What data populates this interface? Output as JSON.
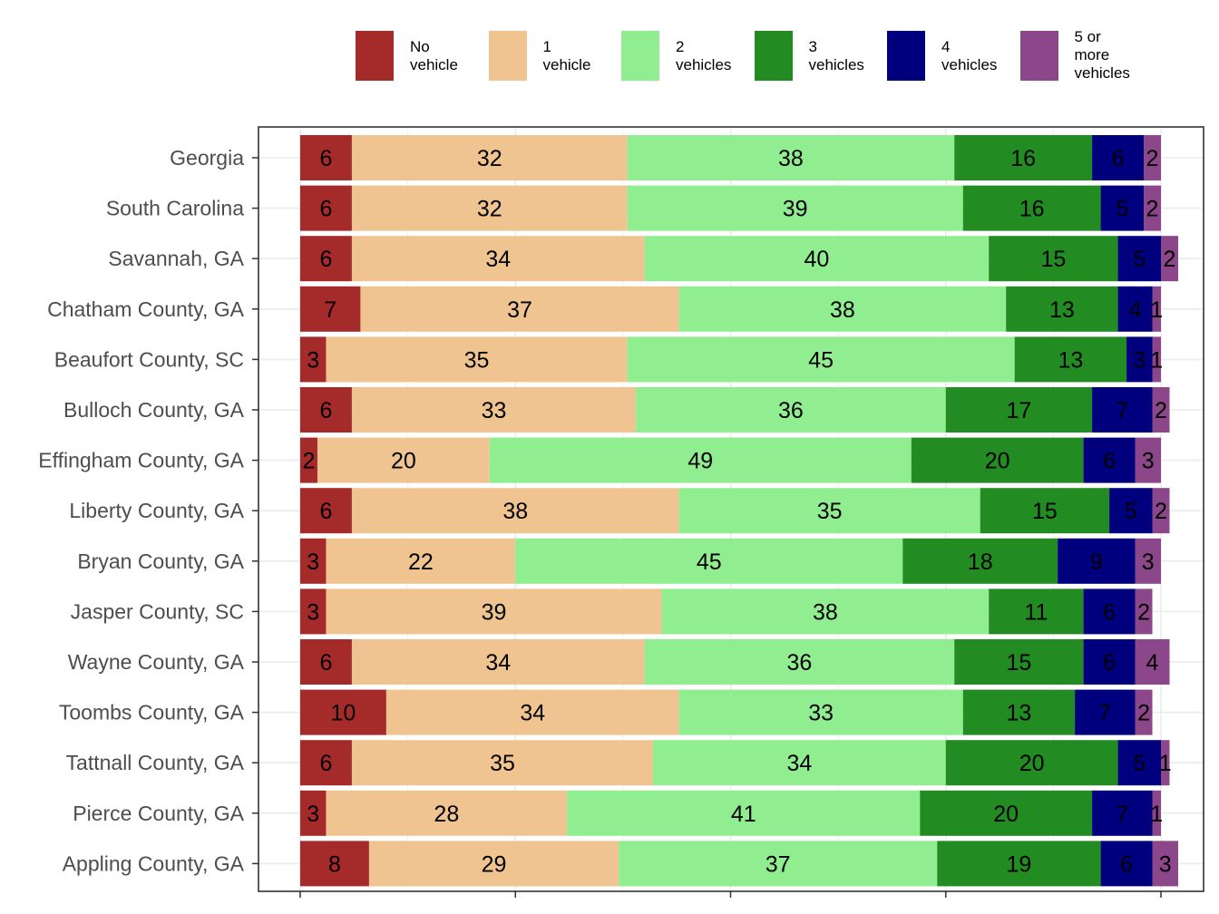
{
  "chart_data": {
    "type": "bar",
    "orientation": "horizontal",
    "stacked": true,
    "title": "",
    "xlabel": "",
    "ylabel": "",
    "xlim": [
      0,
      100
    ],
    "grid": true,
    "legend_position": "top",
    "categories": [
      "Georgia",
      "South Carolina",
      "Savannah, GA",
      "Chatham County, GA",
      "Beaufort County, SC",
      "Bulloch County, GA",
      "Effingham County, GA",
      "Liberty County, GA",
      "Bryan County, GA",
      "Jasper County, SC",
      "Wayne County, GA",
      "Toombs County, GA",
      "Tattnall County, GA",
      "Pierce County, GA",
      "Appling County, GA"
    ],
    "series": [
      {
        "name": "No vehicle",
        "lines": [
          "No",
          "vehicle"
        ],
        "color": "#a52a2a",
        "values": [
          6,
          6,
          6,
          7,
          3,
          6,
          2,
          6,
          3,
          3,
          6,
          10,
          6,
          3,
          8
        ]
      },
      {
        "name": "1 vehicle",
        "lines": [
          "1",
          "vehicle"
        ],
        "color": "#f0c490",
        "values": [
          32,
          32,
          34,
          37,
          35,
          33,
          20,
          38,
          22,
          39,
          34,
          34,
          35,
          28,
          29
        ]
      },
      {
        "name": "2 vehicles",
        "lines": [
          "2",
          "vehicles"
        ],
        "color": "#90ee90",
        "values": [
          38,
          39,
          40,
          38,
          45,
          36,
          49,
          35,
          45,
          38,
          36,
          33,
          34,
          41,
          37
        ]
      },
      {
        "name": "3 vehicles",
        "lines": [
          "3",
          "vehicles"
        ],
        "color": "#228b22",
        "values": [
          16,
          16,
          15,
          13,
          13,
          17,
          20,
          15,
          18,
          11,
          15,
          13,
          20,
          20,
          19
        ]
      },
      {
        "name": "4 vehicles",
        "lines": [
          "4",
          "vehicles"
        ],
        "color": "#00007f",
        "values": [
          6,
          5,
          5,
          4,
          3,
          7,
          6,
          5,
          9,
          6,
          6,
          7,
          5,
          7,
          6
        ]
      },
      {
        "name": "5 or more vehicles",
        "lines": [
          "5 or",
          "more",
          "vehicles"
        ],
        "color": "#8b4789",
        "values": [
          2,
          2,
          2,
          1,
          1,
          2,
          3,
          2,
          3,
          2,
          4,
          2,
          1,
          1,
          3
        ]
      }
    ]
  }
}
